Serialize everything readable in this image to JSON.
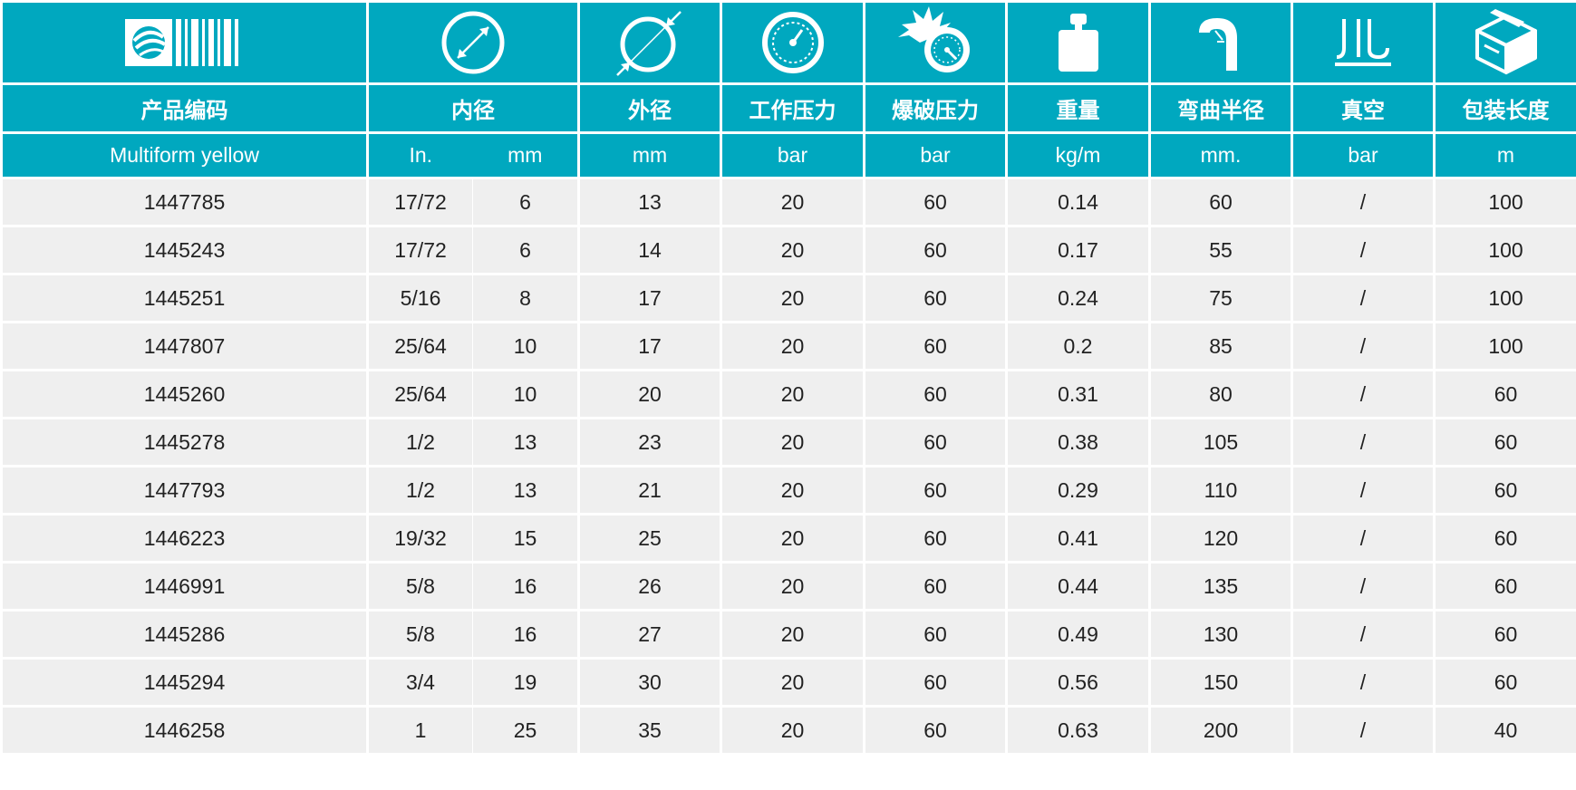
{
  "headers": {
    "code": "产品编码",
    "inner_diameter": "内径",
    "outer_diameter": "外径",
    "working_pressure": "工作压力",
    "burst_pressure": "爆破压力",
    "weight": "重量",
    "bend_radius": "弯曲半径",
    "vacuum": "真空",
    "pack_length": "包装长度"
  },
  "units": {
    "product": "Multiform yellow",
    "inch": "In.",
    "inner_mm": "mm",
    "outer_mm": "mm",
    "working": "bar",
    "burst": "bar",
    "weight": "kg/m",
    "bend": "mm.",
    "vacuum": "bar",
    "length": "m"
  },
  "icons": [
    "brand-logo-icon",
    "inner-diameter-icon",
    "outer-diameter-icon",
    "pressure-gauge-icon",
    "burst-pressure-icon",
    "weight-icon",
    "bend-radius-icon",
    "vacuum-icon",
    "package-icon"
  ],
  "colors": {
    "header_bg": "#00a8bf",
    "row_bg": "#efefef",
    "text": "#222222"
  },
  "rows": [
    [
      "1447785",
      "17/72",
      "6",
      "13",
      "20",
      "60",
      "0.14",
      "60",
      "/",
      "100"
    ],
    [
      "1445243",
      "17/72",
      "6",
      "14",
      "20",
      "60",
      "0.17",
      "55",
      "/",
      "100"
    ],
    [
      "1445251",
      "5/16",
      "8",
      "17",
      "20",
      "60",
      "0.24",
      "75",
      "/",
      "100"
    ],
    [
      "1447807",
      "25/64",
      "10",
      "17",
      "20",
      "60",
      "0.2",
      "85",
      "/",
      "100"
    ],
    [
      "1445260",
      "25/64",
      "10",
      "20",
      "20",
      "60",
      "0.31",
      "80",
      "/",
      "60"
    ],
    [
      "1445278",
      "1/2",
      "13",
      "23",
      "20",
      "60",
      "0.38",
      "105",
      "/",
      "60"
    ],
    [
      "1447793",
      "1/2",
      "13",
      "21",
      "20",
      "60",
      "0.29",
      "110",
      "/",
      "60"
    ],
    [
      "1446223",
      "19/32",
      "15",
      "25",
      "20",
      "60",
      "0.41",
      "120",
      "/",
      "60"
    ],
    [
      "1446991",
      "5/8",
      "16",
      "26",
      "20",
      "60",
      "0.44",
      "135",
      "/",
      "60"
    ],
    [
      "1445286",
      "5/8",
      "16",
      "27",
      "20",
      "60",
      "0.49",
      "130",
      "/",
      "60"
    ],
    [
      "1445294",
      "3/4",
      "19",
      "30",
      "20",
      "60",
      "0.56",
      "150",
      "/",
      "60"
    ],
    [
      "1446258",
      "1",
      "25",
      "35",
      "20",
      "60",
      "0.63",
      "200",
      "/",
      "40"
    ]
  ]
}
